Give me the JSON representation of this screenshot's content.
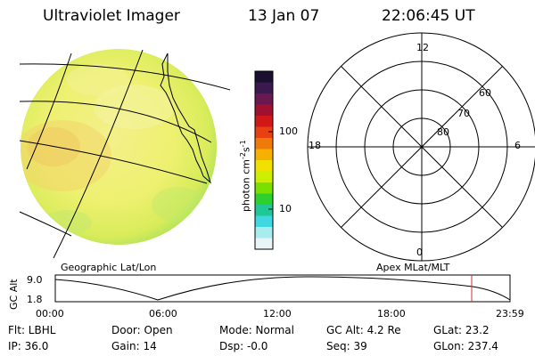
{
  "header": {
    "title": "Ultraviolet Imager",
    "date": "13 Jan 07",
    "time": "22:06:45 UT"
  },
  "colorbar": {
    "unit_label": "photon cm",
    "exp1": "-2",
    "mid": "s",
    "exp2": "-1",
    "ticks": [
      "100",
      "10"
    ],
    "colors": [
      "#1a0f2e",
      "#3a1850",
      "#6a1850",
      "#a01030",
      "#d01818",
      "#e84010",
      "#f07a08",
      "#f5b000",
      "#f2e000",
      "#ccee00",
      "#7be000",
      "#2ed02e",
      "#20c898",
      "#40d8e0",
      "#a8ecf0",
      "#e8f4f6"
    ]
  },
  "dial": {
    "labels": {
      "top": "12",
      "left": "18",
      "right": "6",
      "bottom": "0"
    },
    "rings": [
      "60",
      "70",
      "80"
    ]
  },
  "map_label_left": "Geographic Lat/Lon",
  "map_label_right": "Apex MLat/MLT",
  "plot": {
    "ylabel": "GC Alt",
    "yticks": [
      "9.0",
      "1.8"
    ],
    "xticks": [
      "00:00",
      "06:00",
      "12:00",
      "18:00",
      "23:59"
    ],
    "marker_color": "#d03030"
  },
  "info": {
    "flt": "Flt: LBHL",
    "ip": "IP: 36.0",
    "door": "Door: Open",
    "gain": "Gain: 14",
    "mode": "Mode: Normal",
    "dsp": "Dsp:    -0.0",
    "gcalt": "GC Alt: 4.2 Re",
    "seq": "Seq: 39",
    "glat": "GLat:   23.2",
    "glon": "GLon: 237.4"
  }
}
